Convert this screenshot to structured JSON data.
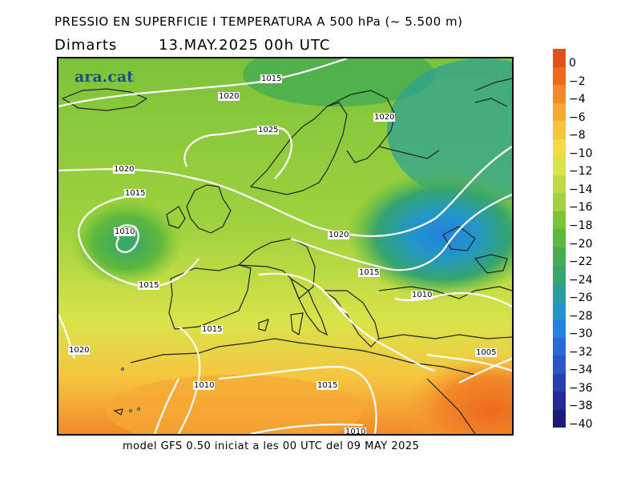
{
  "header": {
    "title": "PRESSIO EN SUPERFICIE I TEMPERATURA A 500 hPa (~ 5.500 m)",
    "day": "Dimarts",
    "datetime": "13.MAY.2025 00h UTC"
  },
  "map": {
    "logo": "ara.cat",
    "isobars": [
      "1015",
      "1020",
      "1025",
      "1020",
      "1020",
      "1015",
      "1010",
      "1015",
      "1020",
      "1015",
      "1015",
      "1010",
      "1020",
      "1010",
      "1015",
      "1005",
      "1010"
    ]
  },
  "legend": {
    "labels": [
      "0",
      "−2",
      "−4",
      "−6",
      "−8",
      "−10",
      "−12",
      "−14",
      "−16",
      "−18",
      "−20",
      "−22",
      "−24",
      "−26",
      "−28",
      "−30",
      "−32",
      "−34",
      "−36",
      "−38",
      "−40"
    ],
    "colors": [
      "#e0501a",
      "#ec6a1e",
      "#f2892a",
      "#f6a834",
      "#f6c53e",
      "#f2dc46",
      "#d9e34a",
      "#bfdc48",
      "#9fd23e",
      "#7cc33a",
      "#5db83c",
      "#45ad52",
      "#36a56e",
      "#2a9f98",
      "#2296c8",
      "#2481df",
      "#2a6ad6",
      "#2c54c4",
      "#2a3fae",
      "#262c96",
      "#1e1a78"
    ]
  },
  "footer": {
    "text": "model GFS 0.50 iniciat a les 00 UTC del 09 MAY 2025"
  }
}
